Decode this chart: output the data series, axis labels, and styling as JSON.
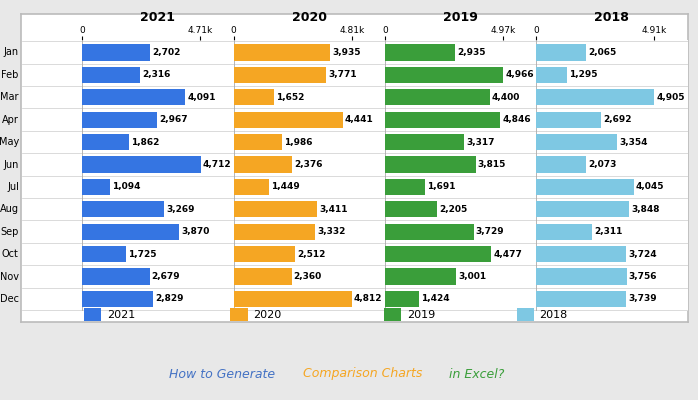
{
  "months": [
    "Jan",
    "Feb",
    "Mar",
    "Apr",
    "May",
    "Jun",
    "Jul",
    "Aug",
    "Sep",
    "Oct",
    "Nov",
    "Dec"
  ],
  "y2021": [
    2702,
    2316,
    4091,
    2967,
    1862,
    4712,
    1094,
    3269,
    3870,
    1725,
    2679,
    2829
  ],
  "y2020": [
    3935,
    3771,
    1652,
    4441,
    1986,
    2376,
    1449,
    3411,
    3332,
    2512,
    2360,
    4812
  ],
  "y2019": [
    2935,
    4966,
    4400,
    4846,
    3317,
    3815,
    1691,
    2205,
    3729,
    4477,
    3001,
    1424
  ],
  "y2018": [
    2065,
    1295,
    4905,
    2692,
    3354,
    2073,
    4045,
    3848,
    2311,
    3724,
    3756,
    3739
  ],
  "col2021": "#3575E2",
  "col2020": "#F5A623",
  "col2019": "#3A9E3A",
  "col2018": "#7EC8E3",
  "max2021": 4710,
  "max2020": 4810,
  "max2019": 4970,
  "max2018": 4910,
  "xlabels2021": [
    "0",
    "4.71k"
  ],
  "xlabels2020": [
    "0",
    "4.81k"
  ],
  "xlabels2019": [
    "0",
    "4.97k"
  ],
  "xlabels2018": [
    "0",
    "4.91k"
  ],
  "panel_bg": "#FFFFFF",
  "outer_bg": "#E8E8E8",
  "title_blue": "#4472C4",
  "title_orange": "#F5A623",
  "title_green": "#3A9E3A",
  "bar_height": 0.72,
  "label_fontsize": 6.5,
  "year_fontsize": 9,
  "tick_fontsize": 6.5,
  "legend_fontsize": 8,
  "title_fontsize": 9
}
